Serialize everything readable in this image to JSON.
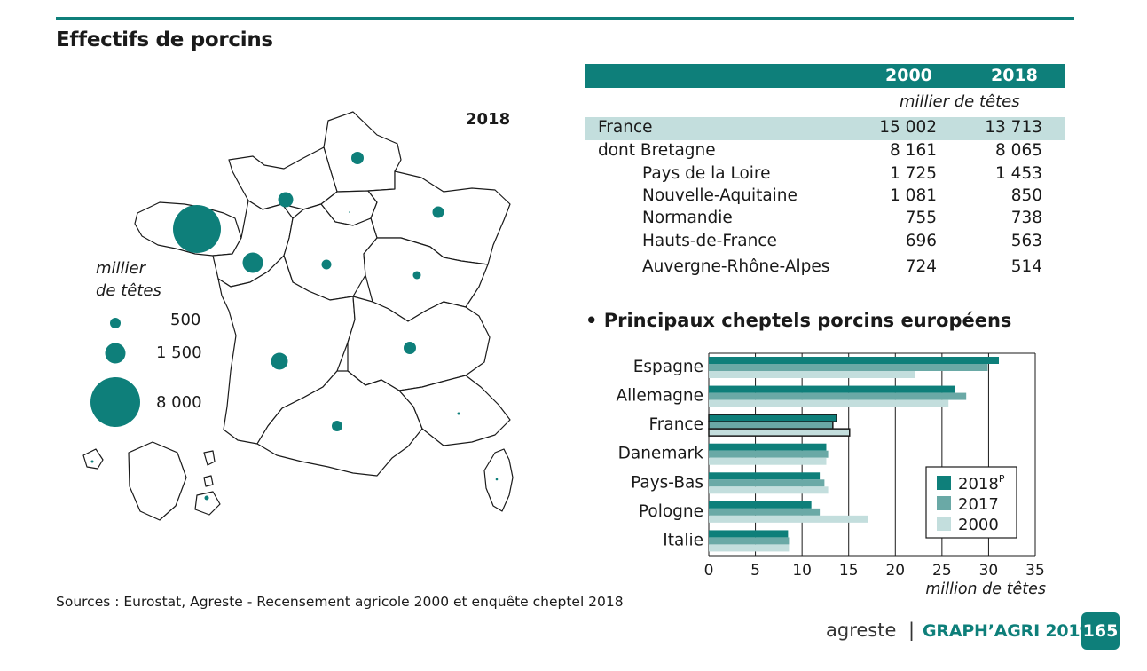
{
  "page": {
    "title": "Effectifs de porcins",
    "sources": "Sources : Eurostat, Agreste - Recensement agricole 2000 et enquête cheptel 2018",
    "footer_brand": "agreste",
    "footer_separator": "|",
    "footer_publication": "GRAPH’AGRI 2019",
    "page_number": "165"
  },
  "map": {
    "year": "2018",
    "legend_unit_line1": "millier",
    "legend_unit_line2": "de têtes",
    "legend_values": [
      "500",
      "1 500",
      "8 000"
    ],
    "legend_numeric": [
      500,
      1500,
      8000
    ],
    "color": "#0e7f7a"
  },
  "table": {
    "columns": [
      "2000",
      "2018"
    ],
    "unit": "millier de têtes",
    "rows": [
      {
        "label": "France",
        "v2000": "15 002",
        "v2018": "13 713"
      },
      {
        "label": "dont Bretagne",
        "v2000": "8 161",
        "v2018": "8 065"
      },
      {
        "label": "Pays de la Loire",
        "v2000": "1 725",
        "v2018": "1 453"
      },
      {
        "label": "Nouvelle-Aquitaine",
        "v2000": "1 081",
        "v2018": "850"
      },
      {
        "label": "Normandie",
        "v2000": "755",
        "v2018": "738"
      },
      {
        "label": "Hauts-de-France",
        "v2000": "696",
        "v2018": "563"
      },
      {
        "label": "Auvergne-Rhône-Alpes",
        "v2000": "724",
        "v2018": "514"
      }
    ]
  },
  "chart_data": {
    "type": "bar",
    "orientation": "horizontal",
    "title": "• Principaux cheptels porcins européens",
    "xlabel": "million de têtes",
    "xlim": [
      0,
      35
    ],
    "xticks": [
      0,
      5,
      10,
      15,
      20,
      25,
      30,
      35
    ],
    "categories": [
      "Espagne",
      "Allemagne",
      "France",
      "Danemark",
      "Pays-Bas",
      "Pologne",
      "Italie"
    ],
    "highlight_category": "France",
    "series": [
      {
        "name": "2018",
        "superscript": "P",
        "color": "#0e7f7a",
        "values": [
          31.1,
          26.4,
          13.7,
          12.6,
          11.9,
          11.0,
          8.5
        ]
      },
      {
        "name": "2017",
        "color": "#6aa9a6",
        "values": [
          29.9,
          27.6,
          13.3,
          12.8,
          12.4,
          11.9,
          8.6
        ]
      },
      {
        "name": "2000",
        "color": "#c3dedd",
        "values": [
          22.1,
          25.7,
          15.1,
          12.6,
          12.8,
          17.1,
          8.6
        ]
      }
    ],
    "legend_position": "bottom-right",
    "grid": true
  }
}
